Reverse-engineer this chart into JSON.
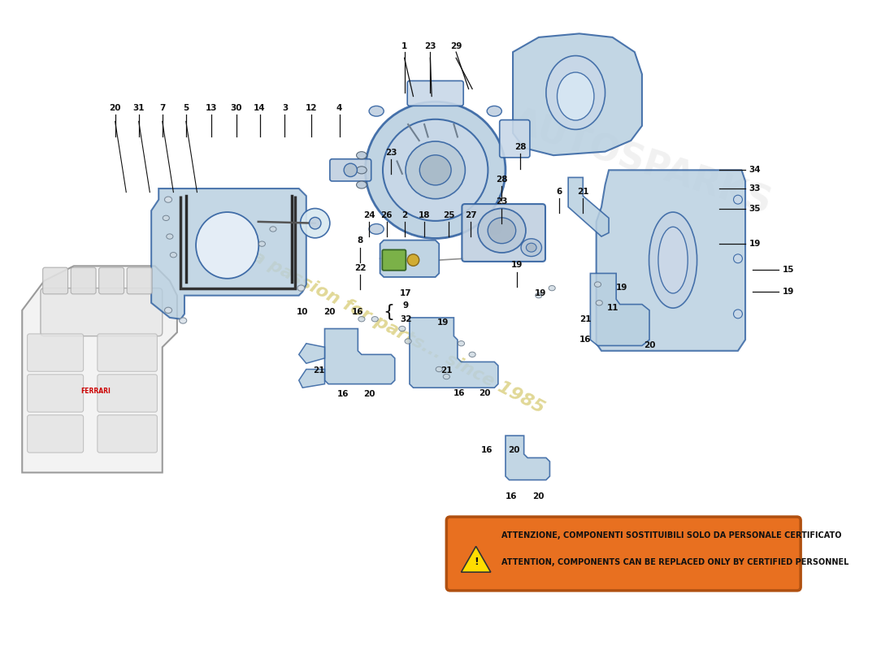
{
  "bg_color": "#ffffff",
  "part_fill": "#b8cfe0",
  "part_fill2": "#c8daea",
  "part_edge": "#3060a0",
  "part_edge2": "#506080",
  "line_color": "#111111",
  "label_color": "#111111",
  "label_fs": 7.5,
  "warning_bg": "#e87020",
  "warning_edge": "#b05010",
  "warning_text_color": "#1a1a1a",
  "warning_line1": "ATTENZIONE, COMPONENTI SOSTITUIBILI SOLO DA PERSONALE CERTIFICATO",
  "warning_line2": "ATTENTION, COMPONENTS CAN BE REPLACED ONLY BY CERTIFIED PERSONNEL",
  "watermark_text": "a passion for parts... since 1985",
  "watermark_color": "#c8b840",
  "watermark_alpha": 0.55,
  "brand_text": "AUTOSPARKS",
  "brand_color": "#d8d8d8",
  "brand_alpha": 0.35,
  "engine_fill": "#f0f0f0",
  "engine_edge": "#888888"
}
